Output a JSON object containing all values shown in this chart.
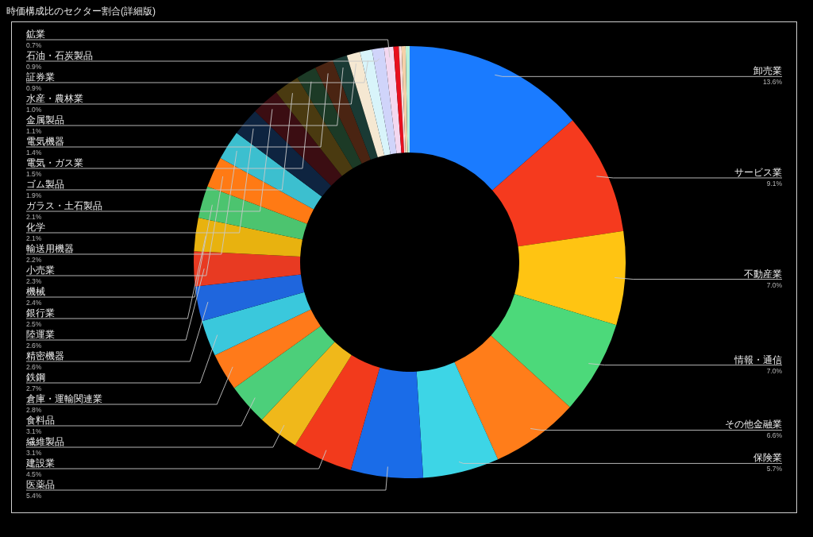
{
  "chart_data": {
    "type": "donut",
    "title": "時価構成比のセクター割合(詳細版)",
    "categories": [
      "卸売業",
      "サービス業",
      "不動産業",
      "情報・通信",
      "その他金融業",
      "保険業",
      "医薬品",
      "建設業",
      "繊維製品",
      "食料品",
      "倉庫・運輸関連業",
      "鉄鋼",
      "精密機器",
      "陸運業",
      "銀行業",
      "機械",
      "小売業",
      "輸送用機器",
      "化学",
      "ガラス・土石製品",
      "ゴム製品",
      "電気・ガス業",
      "電気機器",
      "金属製品",
      "水産・農林業",
      "証券業",
      "石油・石炭製品",
      "鉱業",
      null,
      null,
      null,
      null
    ],
    "values": [
      13.6,
      9.1,
      7.0,
      7.0,
      6.6,
      5.7,
      5.4,
      4.5,
      3.1,
      3.1,
      2.8,
      2.7,
      2.6,
      2.6,
      2.5,
      2.4,
      2.3,
      2.2,
      2.1,
      2.1,
      1.9,
      1.5,
      1.4,
      1.1,
      1.0,
      0.9,
      0.9,
      0.7,
      0.4,
      0.2,
      0.3,
      0.3
    ],
    "value_labels": [
      "13.6%",
      "9.1%",
      "7.0%",
      "7.0%",
      "6.6%",
      "5.7%",
      "5.4%",
      "4.5%",
      "3.1%",
      "3.1%",
      "2.8%",
      "2.7%",
      "2.6%",
      "2.6%",
      "2.5%",
      "2.4%",
      "2.3%",
      "2.2%",
      "2.1%",
      "2.1%",
      "1.9%",
      "1.5%",
      "1.4%",
      "1.1%",
      "1.0%",
      "0.9%",
      "0.9%",
      "0.7%",
      null,
      null,
      null,
      null
    ],
    "colors": [
      "#1a7bff",
      "#f53a1e",
      "#ffc412",
      "#4cd97a",
      "#ff7d1a",
      "#3dd5e6",
      "#1a6ce8",
      "#f23a1c",
      "#f0b81a",
      "#4ccf7a",
      "#ff7a1a",
      "#3ac8dc",
      "#1f66dd",
      "#e83a22",
      "#e8b20f",
      "#4cc46f",
      "#ff7a14",
      "#3cbfcf",
      "#0e2440",
      "#3b0d12",
      "#4a3a10",
      "#1c3a26",
      "#4a2412",
      "#1a3a34",
      "#f5e8d2",
      "#d8f4fa",
      "#d0d4fa",
      "#f4d8f0",
      "#e8101e",
      "#fadcdc",
      "#f5d0a8",
      "#b8f0d8"
    ]
  }
}
